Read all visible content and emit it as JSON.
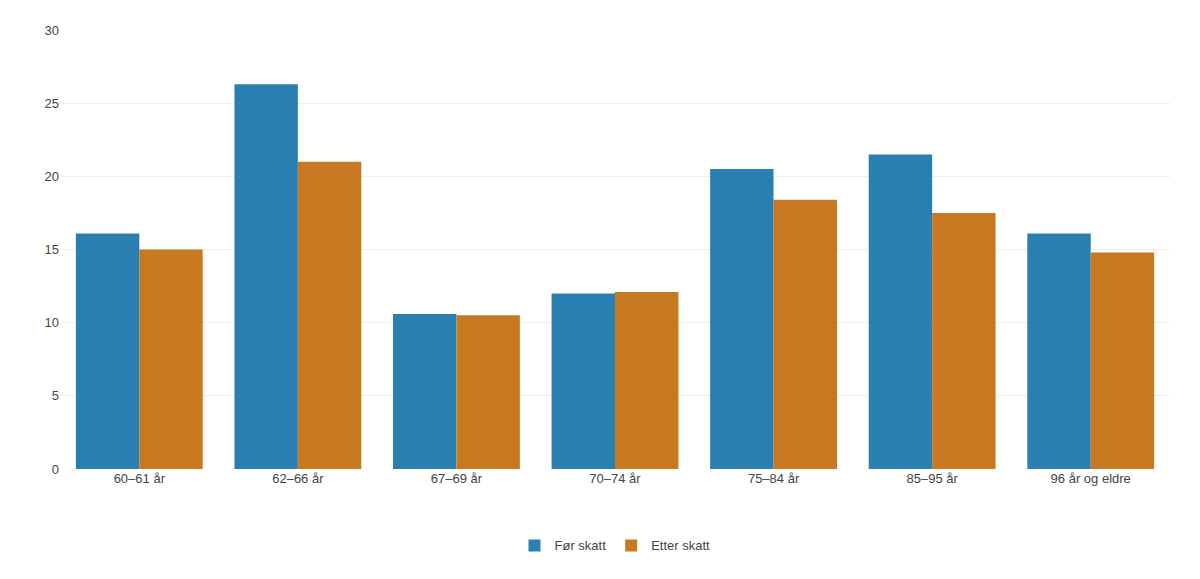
{
  "chart_data": {
    "type": "bar",
    "categories": [
      "60–61 år",
      "62–66 år",
      "67–69 år",
      "70–74 år",
      "75–84 år",
      "85–95 år",
      "96 år og eldre"
    ],
    "series": [
      {
        "name": "Før skatt",
        "color": "#2980b0",
        "values": [
          16.1,
          26.3,
          10.6,
          12.0,
          20.5,
          21.5,
          16.1
        ]
      },
      {
        "name": "Etter skatt",
        "color": "#c87820",
        "values": [
          15.0,
          21.0,
          10.5,
          12.1,
          18.4,
          17.5,
          14.8
        ]
      }
    ],
    "ylim": [
      0,
      30
    ],
    "yticks": [
      0,
      5,
      10,
      15,
      20,
      25,
      30
    ],
    "grid": true,
    "legend": "bottom"
  }
}
